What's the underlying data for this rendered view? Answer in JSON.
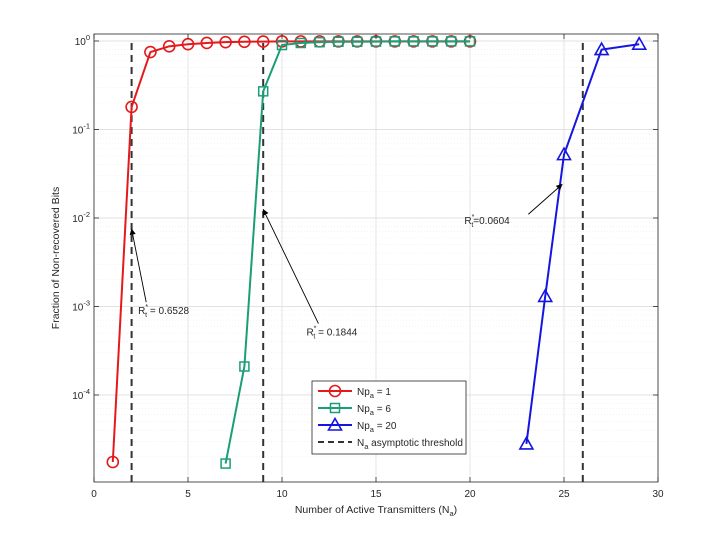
{
  "chart_data": {
    "type": "line",
    "title": "",
    "xlabel": "Number of Active Transmitters (N",
    "xlabel_sub": "a",
    "xlabel_close": ")",
    "ylabel": "Fraction of Non-recovered Bits",
    "xlim": [
      0,
      30
    ],
    "ylim": [
      1e-05,
      1
    ],
    "yscale": "log",
    "xticks": [
      0,
      5,
      10,
      15,
      20,
      25,
      30
    ],
    "yticks": [
      {
        "value": 1,
        "base": "10",
        "exp": "0"
      },
      {
        "value": 0.1,
        "base": "10",
        "exp": "-1"
      },
      {
        "value": 0.01,
        "base": "10",
        "exp": "-2"
      },
      {
        "value": 0.001,
        "base": "10",
        "exp": "-3"
      },
      {
        "value": 0.0001,
        "base": "10",
        "exp": "-4"
      }
    ],
    "grid": true,
    "legend_position": "lower-center",
    "series": [
      {
        "name": "Np",
        "name_sub": "a",
        "name_tail": " = 1",
        "color": "#e31a1c",
        "marker": "circle",
        "points": [
          [
            1,
            1.75e-05
          ],
          [
            2,
            0.18
          ],
          [
            3,
            0.75
          ],
          [
            4,
            0.87
          ],
          [
            5,
            0.92
          ],
          [
            6,
            0.95
          ],
          [
            7,
            0.97
          ],
          [
            8,
            0.98
          ],
          [
            9,
            0.985
          ],
          [
            10,
            0.99
          ],
          [
            11,
            0.99
          ],
          [
            12,
            0.99
          ],
          [
            13,
            0.99
          ],
          [
            14,
            0.99
          ],
          [
            15,
            0.99
          ],
          [
            16,
            0.99
          ],
          [
            17,
            0.99
          ],
          [
            18,
            0.99
          ],
          [
            19,
            0.99
          ],
          [
            20,
            0.99
          ]
        ]
      },
      {
        "name": "Np",
        "name_sub": "a",
        "name_tail": " = 6",
        "color": "#1b9e77",
        "marker": "square",
        "points": [
          [
            7,
            1.68e-05
          ],
          [
            8,
            0.00021
          ],
          [
            9,
            0.27
          ],
          [
            10,
            0.9
          ],
          [
            11,
            0.95
          ],
          [
            12,
            0.97
          ],
          [
            13,
            0.98
          ],
          [
            14,
            0.98
          ],
          [
            15,
            0.985
          ],
          [
            16,
            0.99
          ],
          [
            17,
            0.99
          ],
          [
            18,
            0.99
          ],
          [
            19,
            0.99
          ],
          [
            20,
            0.99
          ]
        ]
      },
      {
        "name": "Np",
        "name_sub": "a",
        "name_tail": " = 20",
        "color": "#1515e0",
        "marker": "triangle",
        "points": [
          [
            23,
            2.8e-05
          ],
          [
            24,
            0.0013
          ],
          [
            25,
            0.052
          ],
          [
            27,
            0.8
          ],
          [
            29,
            0.92
          ]
        ]
      }
    ],
    "thresholds": {
      "name": "N",
      "name_sub": "a",
      "name_tail": " asymptotic threshold",
      "color": "#333333",
      "x": [
        2,
        9,
        26
      ]
    },
    "annotations": [
      {
        "label": "R",
        "sub": "t",
        "sup": "*",
        "tail": " = 0.6528",
        "point": [
          2,
          0.0075
        ],
        "text_at": [
          2.35,
          0.00082
        ]
      },
      {
        "label": "R",
        "sub": "t",
        "sup": "*",
        "tail": " = 0.1844",
        "point": [
          9,
          0.0125
        ],
        "text_at": [
          11.3,
          0.00047
        ]
      },
      {
        "label": "R",
        "sub": "t",
        "sup": "*",
        "tail": "=0.0604",
        "point": [
          24.9,
          0.024
        ],
        "text_at": [
          19.7,
          0.0085
        ]
      }
    ]
  }
}
